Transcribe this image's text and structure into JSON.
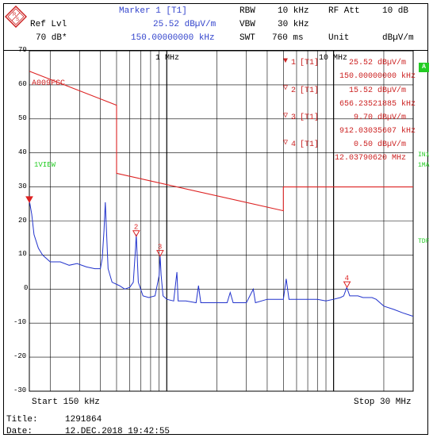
{
  "header": {
    "marker_title": "Marker 1 [T1]",
    "ref_lvl_label": "Ref Lvl",
    "ref_lvl_value": "70 dB*",
    "marker_level": "25.52 dBµV/m",
    "marker_freq": "150.00000000 kHz",
    "rbw_label": "RBW",
    "rbw_value": "10 kHz",
    "vbw_label": "VBW",
    "vbw_value": "30 kHz",
    "swt_label": "SWT",
    "swt_value": "760 ms",
    "rfatt_label": "RF Att",
    "rfatt_value": "10 dB",
    "unit_label": "Unit",
    "unit_value": "dBµV/m"
  },
  "markers_table": [
    {
      "id": "1",
      "trace": "[T1]",
      "level": "25.52 dBµV/m",
      "freq": "150.00000000 kHz"
    },
    {
      "id": "2",
      "trace": "[T1]",
      "level": "15.52 dBµV/m",
      "freq": "656.23521885 kHz"
    },
    {
      "id": "3",
      "trace": "[T1]",
      "level": "9.70 dBµV/m",
      "freq": "912.03035607 kHz"
    },
    {
      "id": "4",
      "trace": "[T1]",
      "level": "0.50 dBµV/m",
      "freq": "12.03790620 MHz"
    }
  ],
  "labels": {
    "limit_line": "A009FCC",
    "trace_label": "1VIEW",
    "one_mhz": "1 MHz",
    "ten_mhz": "10 MHz",
    "start": "Start 150 kHz",
    "stop": "Stop 30 MHz",
    "side_a": "A",
    "side_in1": "IN1",
    "side_1ma": "1MA",
    "side_tdf": "TDF"
  },
  "footer": {
    "title_label": "Title:",
    "title_value": "1291864",
    "date_label": "Date:",
    "date_value": "12.DEC.2018  19:42:55"
  },
  "colors": {
    "trace": "#2233cc",
    "limit": "#dd2222",
    "marker": "#dd2222",
    "grid": "#000000",
    "badge": "#22cc22"
  },
  "chart_data": {
    "type": "line",
    "x_scale": "log",
    "xlim_khz": [
      150,
      30000
    ],
    "ylim": [
      -30,
      70
    ],
    "y_ticks": [
      70,
      60,
      50,
      40,
      30,
      20,
      10,
      0,
      -10,
      -20,
      -30
    ],
    "grid": true,
    "series": [
      {
        "name": "1VIEW",
        "points": [
          [
            150,
            26
          ],
          [
            155,
            22
          ],
          [
            160,
            16
          ],
          [
            170,
            12
          ],
          [
            180,
            10
          ],
          [
            200,
            8
          ],
          [
            230,
            8
          ],
          [
            260,
            7
          ],
          [
            290,
            7.5
          ],
          [
            330,
            6.5
          ],
          [
            370,
            6
          ],
          [
            400,
            6
          ],
          [
            410,
            9
          ],
          [
            420,
            17
          ],
          [
            428,
            25.5
          ],
          [
            435,
            17
          ],
          [
            445,
            6
          ],
          [
            470,
            2
          ],
          [
            520,
            1
          ],
          [
            560,
            0
          ],
          [
            600,
            0.5
          ],
          [
            630,
            2
          ],
          [
            650,
            12
          ],
          [
            656,
            16
          ],
          [
            662,
            12
          ],
          [
            675,
            2
          ],
          [
            720,
            -2
          ],
          [
            780,
            -2.5
          ],
          [
            850,
            -2
          ],
          [
            900,
            4
          ],
          [
            912,
            10
          ],
          [
            925,
            4
          ],
          [
            950,
            -2
          ],
          [
            1000,
            -3
          ],
          [
            1100,
            -3.5
          ],
          [
            1150,
            5
          ],
          [
            1170,
            -3.5
          ],
          [
            1300,
            -3.5
          ],
          [
            1500,
            -4
          ],
          [
            1550,
            1
          ],
          [
            1600,
            -4
          ],
          [
            2000,
            -4
          ],
          [
            2300,
            -4
          ],
          [
            2400,
            -1
          ],
          [
            2500,
            -4
          ],
          [
            3000,
            -4
          ],
          [
            3300,
            0
          ],
          [
            3400,
            -4
          ],
          [
            4000,
            -3
          ],
          [
            5000,
            -3
          ],
          [
            5200,
            3
          ],
          [
            5400,
            -3
          ],
          [
            6000,
            -3
          ],
          [
            7000,
            -3
          ],
          [
            8000,
            -3
          ],
          [
            9000,
            -3.5
          ],
          [
            10000,
            -3
          ],
          [
            11000,
            -2.5
          ],
          [
            11500,
            -2
          ],
          [
            12000,
            0.5
          ],
          [
            12500,
            -2
          ],
          [
            14000,
            -2
          ],
          [
            15000,
            -2.5
          ],
          [
            17000,
            -2.5
          ],
          [
            18000,
            -3
          ],
          [
            20000,
            -5
          ],
          [
            23000,
            -6
          ],
          [
            26000,
            -7
          ],
          [
            30000,
            -8
          ]
        ]
      }
    ],
    "limit_line": {
      "name": "A009FCC",
      "points": [
        [
          150,
          64
        ],
        [
          500,
          54
        ],
        [
          500,
          34
        ],
        [
          5000,
          23
        ],
        [
          5000,
          30
        ],
        [
          30000,
          30
        ]
      ]
    },
    "markers": [
      {
        "id": "1",
        "x_khz": 150,
        "y": 25.52
      },
      {
        "id": "2",
        "x_khz": 656.235,
        "y": 15.52
      },
      {
        "id": "3",
        "x_khz": 912.03,
        "y": 9.7
      },
      {
        "id": "4",
        "x_khz": 12037.9,
        "y": 0.5
      }
    ]
  }
}
